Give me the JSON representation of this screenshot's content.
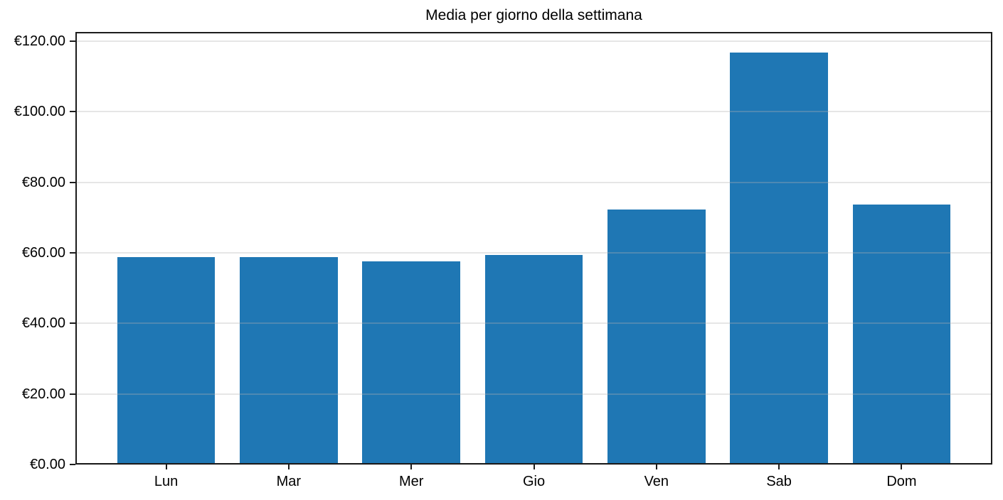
{
  "chart_data": {
    "type": "bar",
    "title": "Media per giorno della settimana",
    "categories": [
      "Lun",
      "Mar",
      "Mer",
      "Gio",
      "Ven",
      "Sab",
      "Dom"
    ],
    "values": [
      58.7,
      58.7,
      57.5,
      59.3,
      72.2,
      116.8,
      73.6
    ],
    "xlabel": "",
    "ylabel": "",
    "currency_prefix": "€",
    "yticks": [
      0,
      20,
      40,
      60,
      80,
      100,
      120
    ],
    "ytick_labels": [
      "€0.00",
      "€20.00",
      "€40.00",
      "€60.00",
      "€80.00",
      "€100.00",
      "€120.00"
    ],
    "ylim": [
      0,
      122.6
    ],
    "xlim": [
      -0.74,
      6.74
    ],
    "bar_width_units": 0.8,
    "grid": "horizontal",
    "legend": null,
    "colors": {
      "bar_fill": "#1f77b4",
      "gridline": "rgba(176,176,176,0.32)",
      "spine": "#1c1c1c",
      "tick": "#1c1c1c",
      "text": "#000000",
      "background": "#ffffff"
    }
  }
}
